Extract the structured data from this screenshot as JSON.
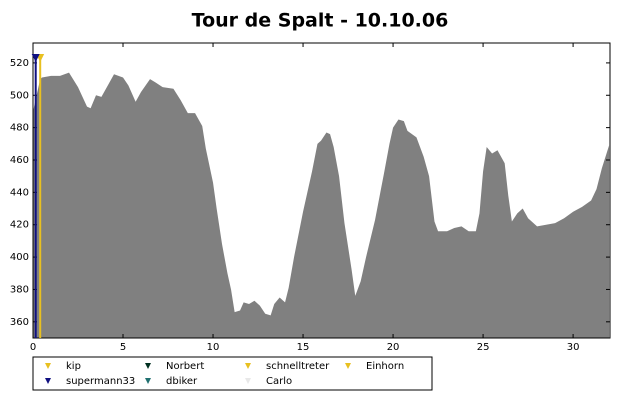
{
  "chart_data": {
    "type": "area",
    "title": "Tour de Spalt - 10.10.06",
    "x": [
      0,
      0.4,
      0.5,
      1,
      1.5,
      2,
      2.5,
      3,
      3.2,
      3.5,
      3.8,
      4.2,
      4.5,
      5,
      5.3,
      5.7,
      6,
      6.5,
      6.8,
      7.2,
      7.8,
      8.2,
      8.6,
      9,
      9.4,
      9.6,
      10,
      10.2,
      10.5,
      10.8,
      11,
      11.2,
      11.5,
      11.7,
      12,
      12.3,
      12.6,
      12.9,
      13.2,
      13.4,
      13.7,
      14,
      14.2,
      14.5,
      15,
      15.5,
      15.8,
      16,
      16.3,
      16.5,
      16.7,
      17,
      17.3,
      17.7,
      17.9,
      18.2,
      18.5,
      19,
      19.5,
      19.8,
      20,
      20.3,
      20.6,
      20.8,
      21.3,
      21.7,
      22,
      22.3,
      22.5,
      23,
      23.4,
      23.8,
      24.2,
      24.6,
      24.8,
      25,
      25.2,
      25.5,
      25.8,
      26.2,
      26.4,
      26.6,
      26.9,
      27.2,
      27.5,
      28,
      28.5,
      29,
      29.5,
      30,
      30.5,
      31,
      31.3,
      31.6,
      32
    ],
    "values": [
      490,
      510,
      511,
      512,
      512,
      514,
      505,
      493,
      492,
      500,
      499,
      507,
      513,
      511,
      506,
      496,
      502,
      510,
      508,
      505,
      504,
      497,
      489,
      489,
      481,
      467,
      446,
      430,
      408,
      390,
      380,
      366,
      367,
      372,
      371,
      373,
      370,
      365,
      364,
      371,
      375,
      372,
      381,
      400,
      428,
      453,
      470,
      472,
      477,
      476,
      468,
      450,
      421,
      392,
      376,
      385,
      400,
      423,
      452,
      470,
      480,
      485,
      484,
      478,
      474,
      462,
      450,
      422,
      416,
      416,
      418,
      419,
      416,
      416,
      427,
      453,
      468,
      464,
      466,
      458,
      438,
      422,
      427,
      430,
      424,
      419,
      420,
      421,
      424,
      428,
      431,
      435,
      442,
      455,
      469
    ],
    "color": "#808080",
    "xlim": [
      0,
      32.05
    ],
    "ylim": [
      350,
      532.3
    ],
    "xticks": [
      0,
      5,
      10,
      15,
      20,
      25,
      30
    ],
    "yticks": [
      360,
      380,
      400,
      420,
      440,
      460,
      480,
      500,
      520
    ],
    "riders": [
      {
        "name": "kip",
        "color": "#e8c020",
        "x": 0.4
      },
      {
        "name": "Norbert",
        "color": "#003020"
      },
      {
        "name": "schnelltreter",
        "color": "#e8c020"
      },
      {
        "name": "Einhorn",
        "color": "#e8c020"
      },
      {
        "name": "supermann33",
        "color": "#101080",
        "x": 0.15
      },
      {
        "name": "dbiker",
        "color": "#207070"
      },
      {
        "name": "Carlo",
        "color": "#e8e8e8"
      }
    ]
  }
}
